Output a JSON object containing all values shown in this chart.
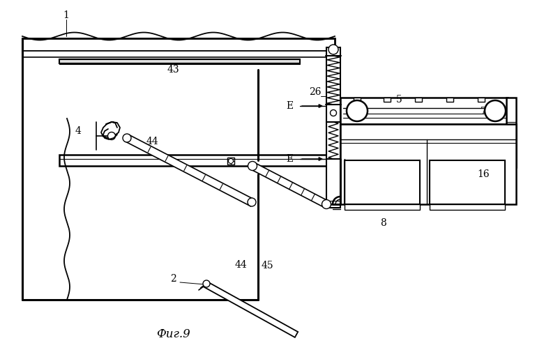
{
  "bg_color": "#ffffff",
  "lc": "#000000",
  "fig_label": "Фиг.9"
}
